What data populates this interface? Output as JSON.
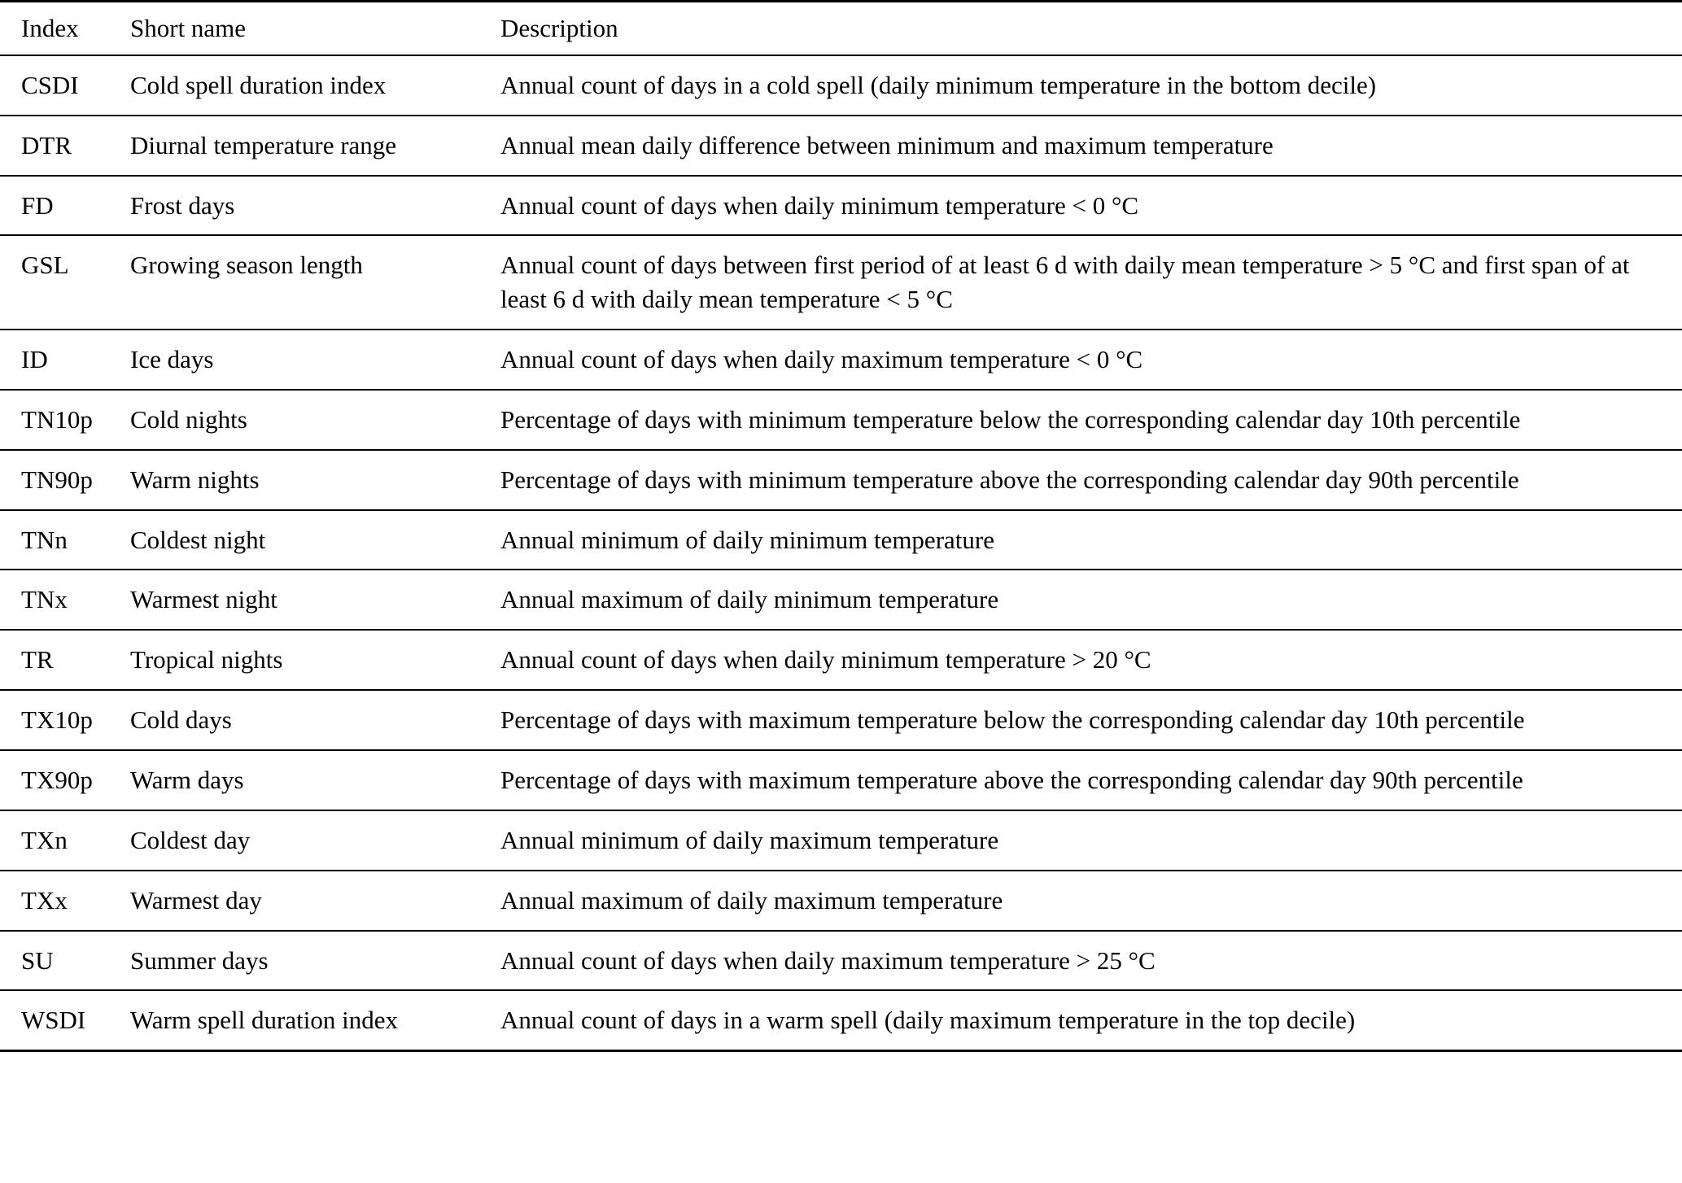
{
  "table": {
    "headers": {
      "index": "Index",
      "short_name": "Short name",
      "description": "Description"
    },
    "rows": [
      {
        "index": "CSDI",
        "short_name": "Cold spell duration index",
        "description": "Annual count of days in a cold spell (daily minimum temperature in the bottom decile)"
      },
      {
        "index": "DTR",
        "short_name": "Diurnal temperature range",
        "description": "Annual mean daily difference between minimum and maximum temperature"
      },
      {
        "index": "FD",
        "short_name": "Frost days",
        "description": "Annual count of days when daily minimum temperature < 0 °C"
      },
      {
        "index": "GSL",
        "short_name": "Growing season length",
        "description": "Annual count of days between first period of at least 6 d with daily mean temperature > 5 °C and first span of at least 6 d with daily mean temperature < 5 °C"
      },
      {
        "index": "ID",
        "short_name": "Ice days",
        "description": "Annual count of days when daily maximum temperature < 0 °C"
      },
      {
        "index": "TN10p",
        "short_name": "Cold nights",
        "description": "Percentage of days with minimum temperature below the corresponding calendar day 10th percentile"
      },
      {
        "index": "TN90p",
        "short_name": "Warm nights",
        "description": "Percentage of days with minimum temperature above the corresponding calendar day 90th percentile"
      },
      {
        "index": "TNn",
        "short_name": "Coldest night",
        "description": "Annual minimum of daily minimum temperature"
      },
      {
        "index": "TNx",
        "short_name": "Warmest night",
        "description": "Annual maximum of daily minimum temperature"
      },
      {
        "index": "TR",
        "short_name": "Tropical nights",
        "description": "Annual count of days when daily minimum temperature > 20 °C"
      },
      {
        "index": "TX10p",
        "short_name": "Cold days",
        "description": "Percentage of days with maximum temperature below the corresponding calendar day 10th percentile"
      },
      {
        "index": "TX90p",
        "short_name": "Warm days",
        "description": "Percentage of days with maximum temperature above the corresponding calendar day 90th percentile"
      },
      {
        "index": "TXn",
        "short_name": "Coldest day",
        "description": "Annual minimum of daily maximum temperature"
      },
      {
        "index": "TXx",
        "short_name": "Warmest day",
        "description": "Annual maximum of daily maximum temperature"
      },
      {
        "index": "SU",
        "short_name": "Summer days",
        "description": "Annual count of days when daily maximum temperature > 25 °C"
      },
      {
        "index": "WSDI",
        "short_name": "Warm spell duration index",
        "description": "Annual count of days in a warm spell (daily maximum temperature in the top decile)"
      }
    ]
  }
}
